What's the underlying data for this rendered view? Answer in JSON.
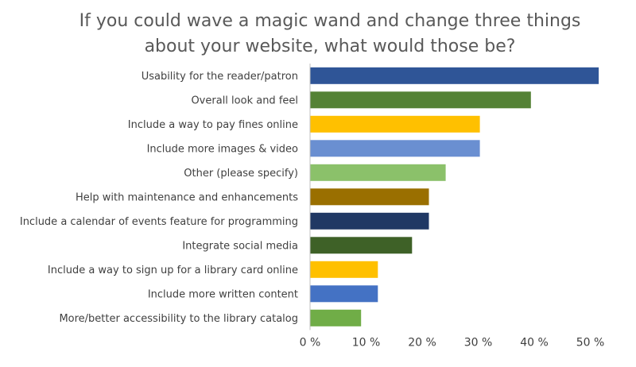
{
  "chart_data": {
    "type": "bar",
    "orientation": "horizontal",
    "title_lines": [
      "If you could wave a magic wand and change three things",
      "about your website, what would those be?"
    ],
    "xlabel": "",
    "ylabel": "",
    "xlim": [
      0,
      55
    ],
    "ticks": [
      0,
      10,
      20,
      30,
      40,
      50
    ],
    "tick_labels": [
      "0 %",
      "10 %",
      "20 %",
      "30 %",
      "40 %",
      "50 %"
    ],
    "grid": false,
    "legend": "none",
    "categories": [
      "Usability for the reader/patron",
      "Overall look and feel",
      "Include a way to pay fines online",
      "Include more images & video",
      "Other (please specify)",
      "Help with maintenance and enhancements",
      "Include a calendar of events feature for programming",
      "Integrate social media",
      "Include a way to sign up for a library card online",
      "Include more written content",
      "More/better accessibility to the library catalog"
    ],
    "values": [
      51.5,
      39.4,
      30.3,
      30.3,
      24.2,
      21.2,
      21.2,
      18.2,
      12.1,
      12.1,
      9.1
    ],
    "colors": [
      "#2f5597",
      "#548235",
      "#ffc000",
      "#6a8fd1",
      "#8bc16a",
      "#9a6f00",
      "#203864",
      "#3e6127",
      "#ffc000",
      "#4472c4",
      "#70ad47"
    ]
  }
}
